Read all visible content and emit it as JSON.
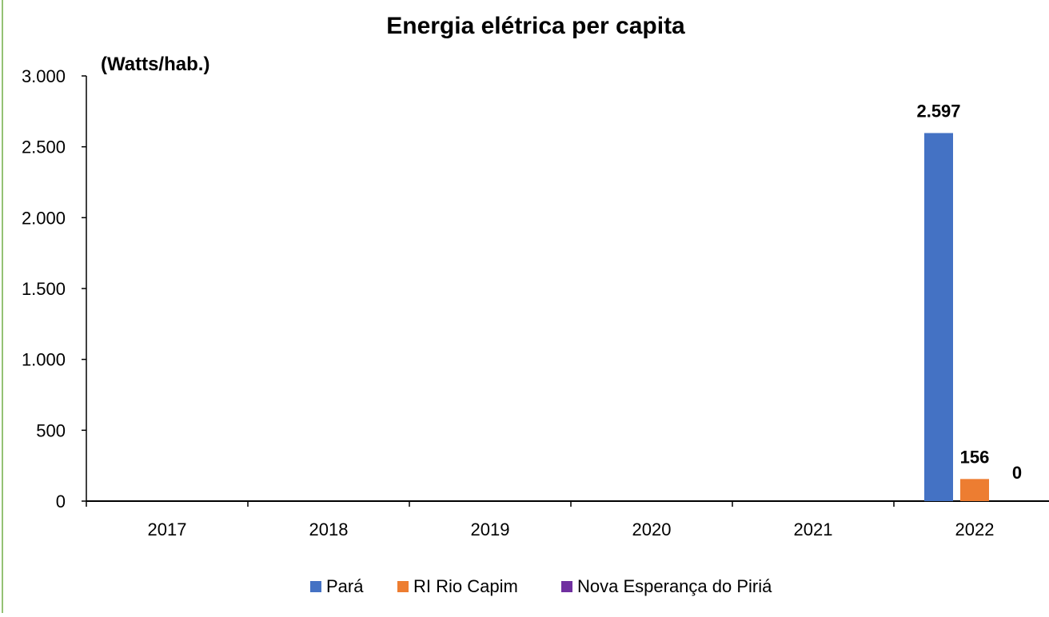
{
  "chart_data": {
    "type": "bar",
    "title": "Energia elétrica per capita",
    "ylabel": "(Watts/hab.)",
    "xlabel": "",
    "categories": [
      "2017",
      "2018",
      "2019",
      "2020",
      "2021",
      "2022"
    ],
    "ylim": [
      0,
      3000
    ],
    "yticks": [
      0,
      500,
      1000,
      1500,
      2000,
      2500,
      3000
    ],
    "ytick_labels": [
      "0",
      "500",
      "1.000",
      "1.500",
      "2.000",
      "2.500",
      "3.000"
    ],
    "grid": false,
    "legend_position": "bottom",
    "series": [
      {
        "name": "Pará",
        "color": "#4472C4",
        "values": [
          null,
          null,
          null,
          null,
          null,
          2597
        ],
        "labels": [
          "",
          "",
          "",
          "",
          "",
          "2.597"
        ]
      },
      {
        "name": "RI Rio Capim",
        "color": "#ED7D31",
        "values": [
          null,
          null,
          null,
          null,
          null,
          156
        ],
        "labels": [
          "",
          "",
          "",
          "",
          "",
          "156"
        ]
      },
      {
        "name": "Nova Esperança do Piriá",
        "color": "#7030A0",
        "values": [
          null,
          null,
          null,
          null,
          null,
          0
        ],
        "labels": [
          "",
          "",
          "",
          "",
          "",
          "0"
        ]
      }
    ]
  }
}
